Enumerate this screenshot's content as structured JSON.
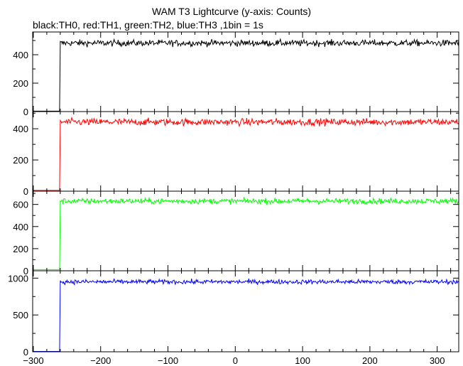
{
  "chart_data": {
    "type": "line",
    "title": "WAM T3 Lightcurve (y-axis: Counts)",
    "subtitle": "black:TH0, red:TH1, green:TH2, blue:TH3 ,1bin = 1s",
    "xlabel": "",
    "ylabel": "",
    "xlim": [
      -301,
      332
    ],
    "x_ticks": [
      -300,
      -200,
      -100,
      0,
      100,
      200,
      300
    ],
    "x_tick_labels": [
      "−300",
      "−200",
      "−100",
      "0",
      "100",
      "200",
      "300"
    ],
    "onset_x": -261,
    "grid": false,
    "panels": [
      {
        "name": "TH0",
        "color": "#000000",
        "ylim": [
          0,
          560
        ],
        "y_ticks": [
          0,
          200,
          400
        ],
        "pre_level": 3,
        "post_level": 482,
        "noise": 16
      },
      {
        "name": "TH1",
        "color": "#ff0000",
        "ylim": [
          0,
          510
        ],
        "y_ticks": [
          0,
          200,
          400
        ],
        "pre_level": 5,
        "post_level": 443,
        "noise": 16
      },
      {
        "name": "TH2",
        "color": "#00ff00",
        "ylim": [
          0,
          720
        ],
        "y_ticks": [
          0,
          200,
          400,
          600
        ],
        "pre_level": 10,
        "post_level": 630,
        "noise": 18
      },
      {
        "name": "TH3",
        "color": "#0000ff",
        "ylim": [
          0,
          1100
        ],
        "y_ticks": [
          0,
          500,
          1000
        ],
        "pre_level": 5,
        "post_level": 950,
        "noise": 22
      }
    ]
  }
}
